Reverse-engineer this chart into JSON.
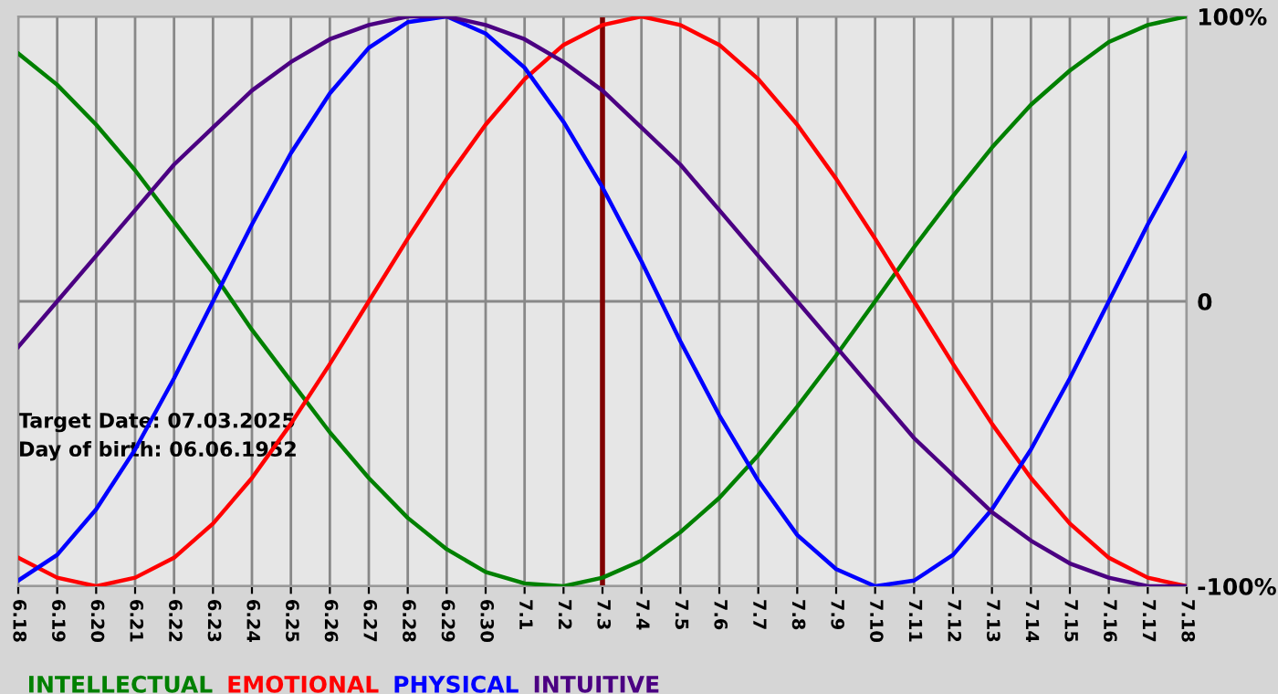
{
  "chart_data": {
    "type": "line",
    "categories": [
      "6.18",
      "6.19",
      "6.20",
      "6.21",
      "6.22",
      "6.23",
      "6.24",
      "6.25",
      "6.26",
      "6.27",
      "6.28",
      "6.29",
      "6.30",
      "7.1",
      "7.2",
      "7.3",
      "7.4",
      "7.5",
      "7.6",
      "7.7",
      "7.8",
      "7.9",
      "7.10",
      "7.11",
      "7.12",
      "7.13",
      "7.14",
      "7.15",
      "7.16",
      "7.17",
      "7.18"
    ],
    "series": [
      {
        "name": "INTELLECTUAL",
        "color": "#008000",
        "values": [
          87,
          76,
          62,
          46,
          28,
          10,
          -10,
          -28,
          -46,
          -62,
          -76,
          -87,
          -95,
          -99,
          -100,
          -97,
          -91,
          -81,
          -69,
          -54,
          -37,
          -19,
          0,
          19,
          37,
          54,
          69,
          81,
          91,
          97,
          100
        ]
      },
      {
        "name": "EMOTIONAL",
        "color": "#ff0000",
        "values": [
          -90,
          -97,
          -100,
          -97,
          -90,
          -78,
          -62,
          -43,
          -22,
          0,
          22,
          43,
          62,
          78,
          90,
          97,
          100,
          97,
          90,
          78,
          62,
          43,
          22,
          0,
          -22,
          -43,
          -62,
          -78,
          -90,
          -97,
          -100
        ]
      },
      {
        "name": "PHYSICAL",
        "color": "#0000ff",
        "values": [
          -98,
          -89,
          -73,
          -52,
          -27,
          0,
          27,
          52,
          73,
          89,
          98,
          100,
          94,
          82,
          63,
          40,
          14,
          -14,
          -40,
          -63,
          -82,
          -94,
          -100,
          -98,
          -89,
          -73,
          -52,
          -27,
          0,
          27,
          52
        ]
      },
      {
        "name": "INTUITIVE",
        "color": "#4b0082",
        "values": [
          -16,
          0,
          16,
          32,
          48,
          61,
          74,
          84,
          92,
          97,
          100,
          100,
          97,
          92,
          84,
          74,
          61,
          48,
          32,
          16,
          0,
          -16,
          -32,
          -48,
          -61,
          -74,
          -84,
          -92,
          -97,
          -100,
          -100
        ]
      }
    ],
    "ylim": [
      -100,
      100
    ],
    "yticks": [
      {
        "value": -100,
        "label": "-100%"
      },
      0,
      {
        "value": 100,
        "label": "100%"
      }
    ],
    "ref_lines": [
      {
        "axis": "x",
        "value": "7.3",
        "color": "#800000"
      }
    ],
    "annotations": [
      "Target Date: 07.03.2025",
      "Day of birth: 06.06.1952"
    ],
    "grid": true,
    "legend": "bottom",
    "marker": "none",
    "line_style": "solid"
  }
}
